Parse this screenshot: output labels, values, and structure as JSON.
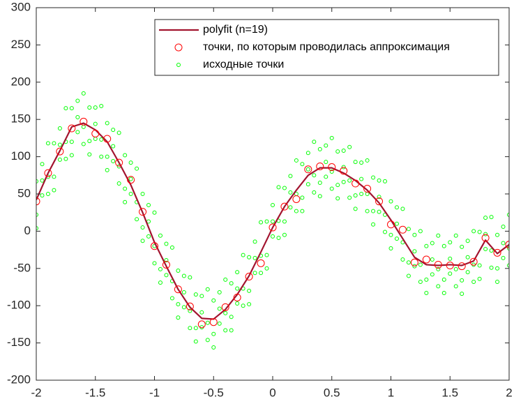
{
  "chart_data": {
    "type": "line",
    "xlim": [
      -2,
      2
    ],
    "xticks": [
      -2,
      -1.5,
      -1,
      -0.5,
      0,
      0.5,
      1,
      1.5,
      2
    ],
    "ylim": [
      -200,
      300
    ],
    "yticks": [
      -200,
      -150,
      -100,
      -50,
      0,
      50,
      100,
      150,
      200,
      250,
      300
    ],
    "grid": false,
    "legend": "northeast",
    "series": [
      {
        "name": "polyfit (n=19)",
        "type": "line",
        "color": "#a2142f",
        "x": [
          -2,
          -1.9,
          -1.8,
          -1.7,
          -1.6,
          -1.5,
          -1.4,
          -1.3,
          -1.2,
          -1.1,
          -1,
          -0.9,
          -0.8,
          -0.7,
          -0.6,
          -0.5,
          -0.4,
          -0.3,
          -0.2,
          -0.1,
          0,
          0.1,
          0.2,
          0.3,
          0.4,
          0.5,
          0.6,
          0.7,
          0.8,
          0.9,
          1,
          1.1,
          1.2,
          1.3,
          1.4,
          1.5,
          1.6,
          1.7,
          1.8,
          1.9,
          2
        ],
        "values": [
          42,
          78,
          108,
          140,
          145,
          136,
          120,
          92,
          62,
          25,
          -15,
          -47,
          -78,
          -102,
          -117,
          -118,
          -105,
          -85,
          -60,
          -28,
          5,
          33,
          55,
          75,
          85,
          85,
          78,
          68,
          55,
          38,
          15,
          -10,
          -35,
          -45,
          -46,
          -45,
          -46,
          -40,
          -12,
          -30,
          -18
        ]
      },
      {
        "name": "точки, по которым проводилась аппроксимация",
        "type": "scatter",
        "color": "#ff0000",
        "marker_size": 5,
        "x": [
          -2,
          -1.9,
          -1.8,
          -1.7,
          -1.6,
          -1.5,
          -1.4,
          -1.3,
          -1.2,
          -1.1,
          -1,
          -0.9,
          -0.8,
          -0.7,
          -0.6,
          -0.5,
          -0.4,
          -0.3,
          -0.2,
          -0.1,
          0,
          0.1,
          0.2,
          0.3,
          0.4,
          0.5,
          0.6,
          0.7,
          0.8,
          0.9,
          1,
          1.1,
          1.2,
          1.3,
          1.4,
          1.5,
          1.6,
          1.7,
          1.8,
          1.9,
          2
        ],
        "values": [
          40,
          78,
          107,
          138,
          147,
          131,
          124,
          92,
          69,
          26,
          -20,
          -45,
          -78,
          -101,
          -125,
          -122,
          -102,
          -89,
          -61,
          -43,
          5,
          33,
          43,
          83,
          87,
          86,
          81,
          64,
          57,
          40,
          9,
          2,
          -42,
          -38,
          -45,
          -46,
          -47,
          -41,
          -9,
          -29,
          -18
        ]
      },
      {
        "name": "исходные точки",
        "type": "scatter",
        "color": "#00ff00",
        "marker_size": 2.5,
        "x": [
          -2,
          -2,
          -2,
          -1.95,
          -1.95,
          -1.95,
          -1.9,
          -1.9,
          -1.9,
          -1.85,
          -1.85,
          -1.85,
          -1.8,
          -1.8,
          -1.8,
          -1.75,
          -1.75,
          -1.75,
          -1.7,
          -1.7,
          -1.7,
          -1.65,
          -1.65,
          -1.65,
          -1.6,
          -1.6,
          -1.6,
          -1.55,
          -1.55,
          -1.55,
          -1.5,
          -1.5,
          -1.5,
          -1.45,
          -1.45,
          -1.45,
          -1.4,
          -1.4,
          -1.4,
          -1.35,
          -1.35,
          -1.35,
          -1.3,
          -1.3,
          -1.3,
          -1.25,
          -1.25,
          -1.25,
          -1.2,
          -1.2,
          -1.2,
          -1.15,
          -1.15,
          -1.15,
          -1.1,
          -1.1,
          -1.1,
          -1.05,
          -1.05,
          -1.05,
          -1,
          -1,
          -1,
          -0.95,
          -0.95,
          -0.95,
          -0.9,
          -0.9,
          -0.9,
          -0.85,
          -0.85,
          -0.85,
          -0.8,
          -0.8,
          -0.8,
          -0.75,
          -0.75,
          -0.75,
          -0.7,
          -0.7,
          -0.7,
          -0.65,
          -0.65,
          -0.65,
          -0.6,
          -0.6,
          -0.6,
          -0.55,
          -0.55,
          -0.55,
          -0.5,
          -0.5,
          -0.5,
          -0.45,
          -0.45,
          -0.45,
          -0.4,
          -0.4,
          -0.4,
          -0.35,
          -0.35,
          -0.35,
          -0.3,
          -0.3,
          -0.3,
          -0.25,
          -0.25,
          -0.25,
          -0.2,
          -0.2,
          -0.2,
          -0.15,
          -0.15,
          -0.15,
          -0.1,
          -0.1,
          -0.1,
          -0.05,
          -0.05,
          -0.05,
          0,
          0,
          0,
          0.05,
          0.05,
          0.05,
          0.1,
          0.1,
          0.1,
          0.15,
          0.15,
          0.15,
          0.2,
          0.2,
          0.2,
          0.25,
          0.25,
          0.25,
          0.3,
          0.3,
          0.3,
          0.35,
          0.35,
          0.35,
          0.4,
          0.4,
          0.4,
          0.45,
          0.45,
          0.45,
          0.5,
          0.5,
          0.5,
          0.55,
          0.55,
          0.55,
          0.6,
          0.6,
          0.6,
          0.65,
          0.65,
          0.65,
          0.7,
          0.7,
          0.7,
          0.75,
          0.75,
          0.75,
          0.8,
          0.8,
          0.8,
          0.85,
          0.85,
          0.85,
          0.9,
          0.9,
          0.9,
          0.95,
          0.95,
          0.95,
          1,
          1,
          1,
          1.05,
          1.05,
          1.05,
          1.1,
          1.1,
          1.1,
          1.15,
          1.15,
          1.15,
          1.2,
          1.2,
          1.2,
          1.25,
          1.25,
          1.25,
          1.3,
          1.3,
          1.3,
          1.35,
          1.35,
          1.35,
          1.4,
          1.4,
          1.4,
          1.45,
          1.45,
          1.45,
          1.5,
          1.5,
          1.5,
          1.55,
          1.55,
          1.55,
          1.6,
          1.6,
          1.6,
          1.65,
          1.65,
          1.65,
          1.7,
          1.7,
          1.7,
          1.75,
          1.75,
          1.75,
          1.8,
          1.8,
          1.8,
          1.85,
          1.85,
          1.85,
          1.9,
          1.9,
          1.9,
          1.95,
          1.95,
          1.95,
          2,
          2,
          2
        ],
        "values": [
          67,
          22,
          4,
          48,
          90,
          68,
          118,
          73,
          50,
          118,
          73,
          55,
          96,
          138,
          116,
          165,
          120,
          97,
          165,
          120,
          102,
          133,
          175,
          153,
          185,
          140,
          117,
          166,
          121,
          103,
          124,
          166,
          144,
          168,
          123,
          100,
          145,
          100,
          82,
          94,
          136,
          114,
          132,
          87,
          64,
          102,
          57,
          39,
          50,
          92,
          70,
          84,
          39,
          16,
          50,
          5,
          -13,
          -7,
          35,
          13,
          25,
          -20,
          -43,
          -6,
          -51,
          -69,
          -59,
          -17,
          -39,
          -22,
          -67,
          -90,
          -53,
          -98,
          -116,
          -102,
          -60,
          -82,
          -62,
          -107,
          -130,
          -85,
          -130,
          -148,
          -129,
          -87,
          -109,
          -78,
          -123,
          -146,
          -93,
          -138,
          -156,
          -124,
          -82,
          -104,
          -65,
          -110,
          -133,
          -70,
          -115,
          -133,
          -97,
          -55,
          -77,
          -32,
          -77,
          -100,
          -35,
          -80,
          -98,
          -56,
          -14,
          -36,
          12,
          -33,
          -56,
          13,
          -32,
          -50,
          -7,
          35,
          13,
          59,
          14,
          -9,
          58,
          13,
          -5,
          32,
          74,
          52,
          95,
          50,
          27,
          90,
          45,
          27,
          63,
          105,
          83,
          120,
          75,
          52,
          110,
          65,
          47,
          73,
          115,
          93,
          125,
          80,
          57,
          107,
          62,
          44,
          66,
          108,
          86,
          113,
          68,
          45,
          93,
          48,
          30,
          50,
          92,
          70,
          95,
          50,
          27,
          72,
          27,
          9,
          26,
          68,
          46,
          67,
          22,
          -1,
          40,
          -5,
          -23,
          -10,
          32,
          10,
          30,
          -15,
          -38,
          3,
          -42,
          -60,
          -47,
          -5,
          -27,
          0,
          -45,
          -68,
          -20,
          -65,
          -83,
          -58,
          -16,
          -38,
          -6,
          -51,
          -74,
          -20,
          -65,
          -83,
          -57,
          -15,
          -37,
          -6,
          -51,
          -74,
          -21,
          -66,
          -84,
          -55,
          -13,
          -35,
          0,
          -45,
          -68,
          -1,
          -46,
          -64,
          -24,
          18,
          -4,
          19,
          -26,
          -49,
          -5,
          -50,
          -68,
          -36,
          6,
          -16,
          22,
          -23,
          -46
        ]
      }
    ]
  }
}
